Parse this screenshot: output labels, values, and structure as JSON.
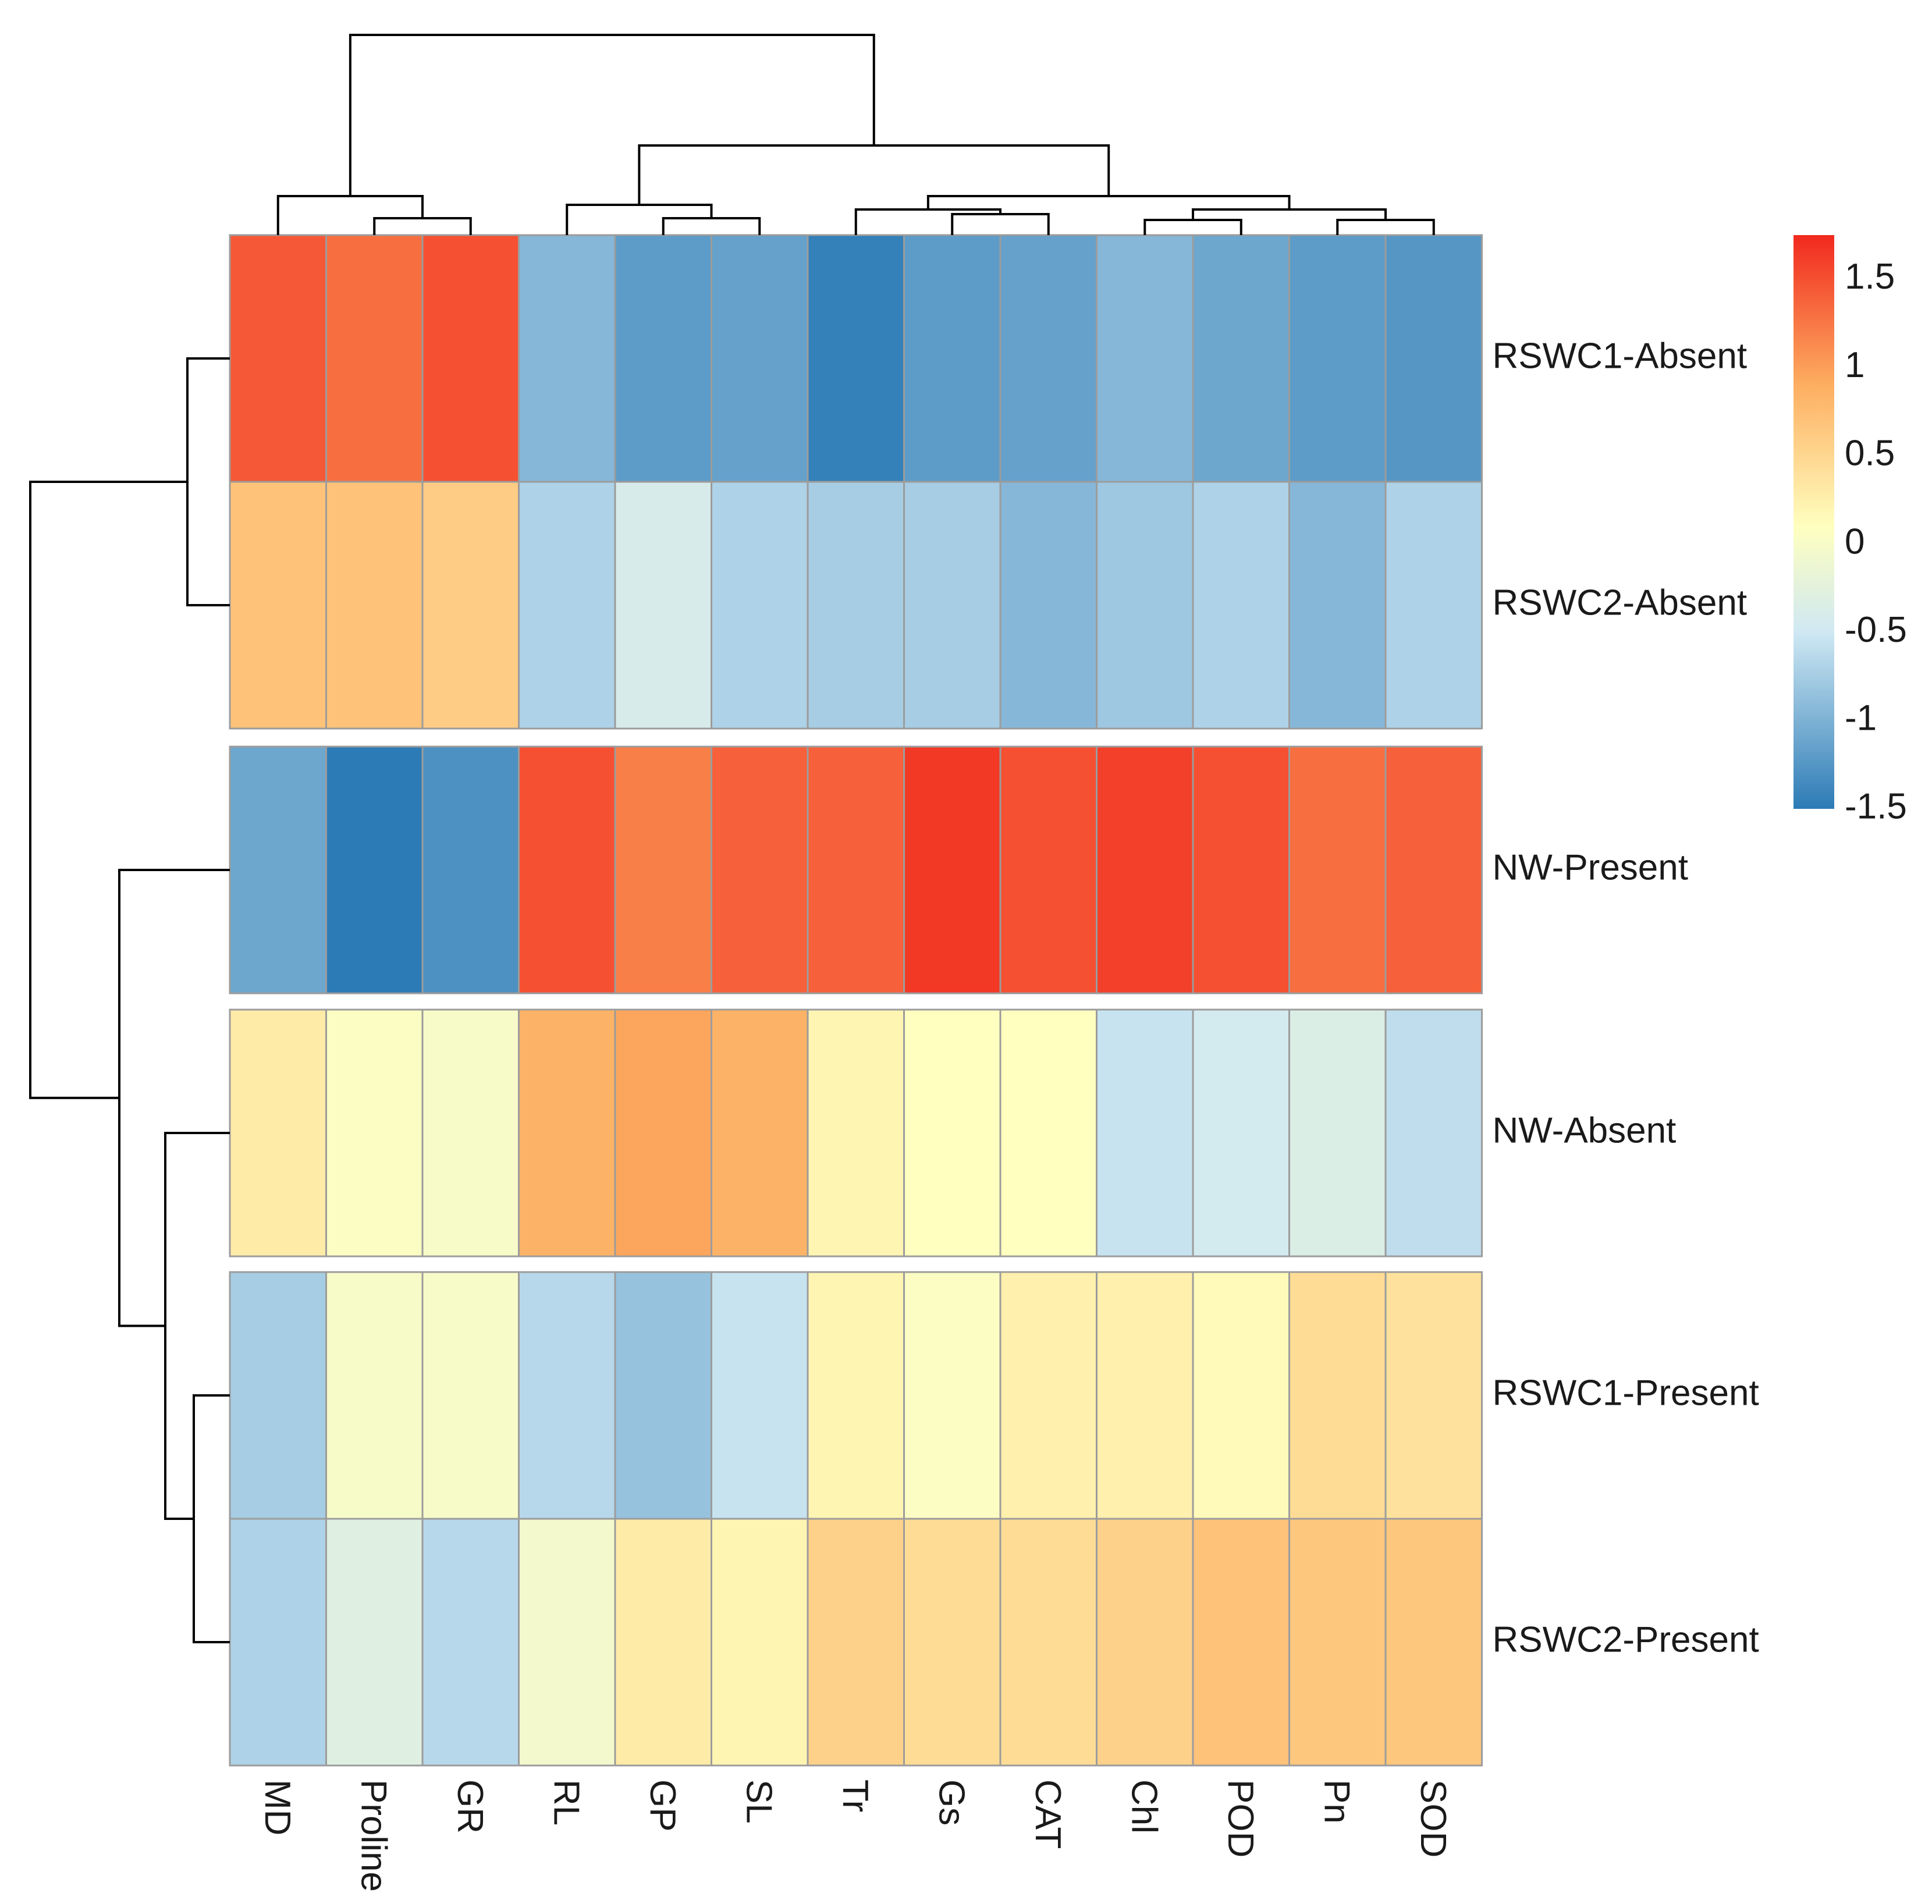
{
  "chart_data": {
    "type": "heatmap",
    "columns": [
      "MD",
      "Proline",
      "GR",
      "RL",
      "GP",
      "SL",
      "Tr",
      "Gs",
      "CAT",
      "Chl",
      "POD",
      "Pn",
      "SOD"
    ],
    "rows": [
      "RSWC1-Absent",
      "RSWC2-Absent",
      "NW-Present",
      "NW-Absent",
      "RSWC1-Present",
      "RSWC2-Present"
    ],
    "values": [
      [
        1.45,
        1.3,
        1.5,
        -0.95,
        -1.2,
        -1.15,
        -1.45,
        -1.2,
        -1.15,
        -0.95,
        -1.1,
        -1.2,
        -1.25
      ],
      [
        0.7,
        0.7,
        0.6,
        -0.7,
        -0.4,
        -0.7,
        -0.75,
        -0.75,
        -0.95,
        -0.8,
        -0.7,
        -0.95,
        -0.7
      ],
      [
        -1.1,
        -1.55,
        -1.3,
        1.5,
        1.2,
        1.4,
        1.4,
        1.65,
        1.5,
        1.6,
        1.5,
        1.3,
        1.4
      ],
      [
        0.3,
        0.05,
        0.0,
        0.85,
        0.95,
        0.85,
        0.2,
        0.1,
        0.1,
        -0.55,
        -0.45,
        -0.35,
        -0.6
      ],
      [
        -0.75,
        0.0,
        0.0,
        -0.65,
        -0.85,
        -0.55,
        0.2,
        0.05,
        0.25,
        0.25,
        0.15,
        0.45,
        0.4
      ],
      [
        -0.7,
        -0.3,
        -0.65,
        -0.05,
        0.3,
        0.2,
        0.55,
        0.45,
        0.45,
        0.55,
        0.7,
        0.65,
        0.65
      ]
    ],
    "row_groups": [
      [
        0,
        1
      ],
      [
        2
      ],
      [
        3
      ],
      [
        4,
        5
      ]
    ],
    "color_scale": {
      "min": -1.5,
      "max": 1.75,
      "stops": [
        {
          "value": -1.5,
          "color": "#2c7bb6"
        },
        {
          "value": -0.5,
          "color": "#cfe8f3"
        },
        {
          "value": 0.1,
          "color": "#ffffbf"
        },
        {
          "value": 0.9,
          "color": "#fdae61"
        },
        {
          "value": 1.75,
          "color": "#f1291e"
        }
      ],
      "ticks": [
        {
          "value": 1.5,
          "label": "1.5"
        },
        {
          "value": 1,
          "label": "1"
        },
        {
          "value": 0.5,
          "label": "0.5"
        },
        {
          "value": 0,
          "label": "0"
        },
        {
          "value": -0.5,
          "label": "-0.5"
        },
        {
          "value": -1,
          "label": "-1"
        },
        {
          "value": -1.5,
          "label": "-1.5"
        }
      ]
    }
  }
}
